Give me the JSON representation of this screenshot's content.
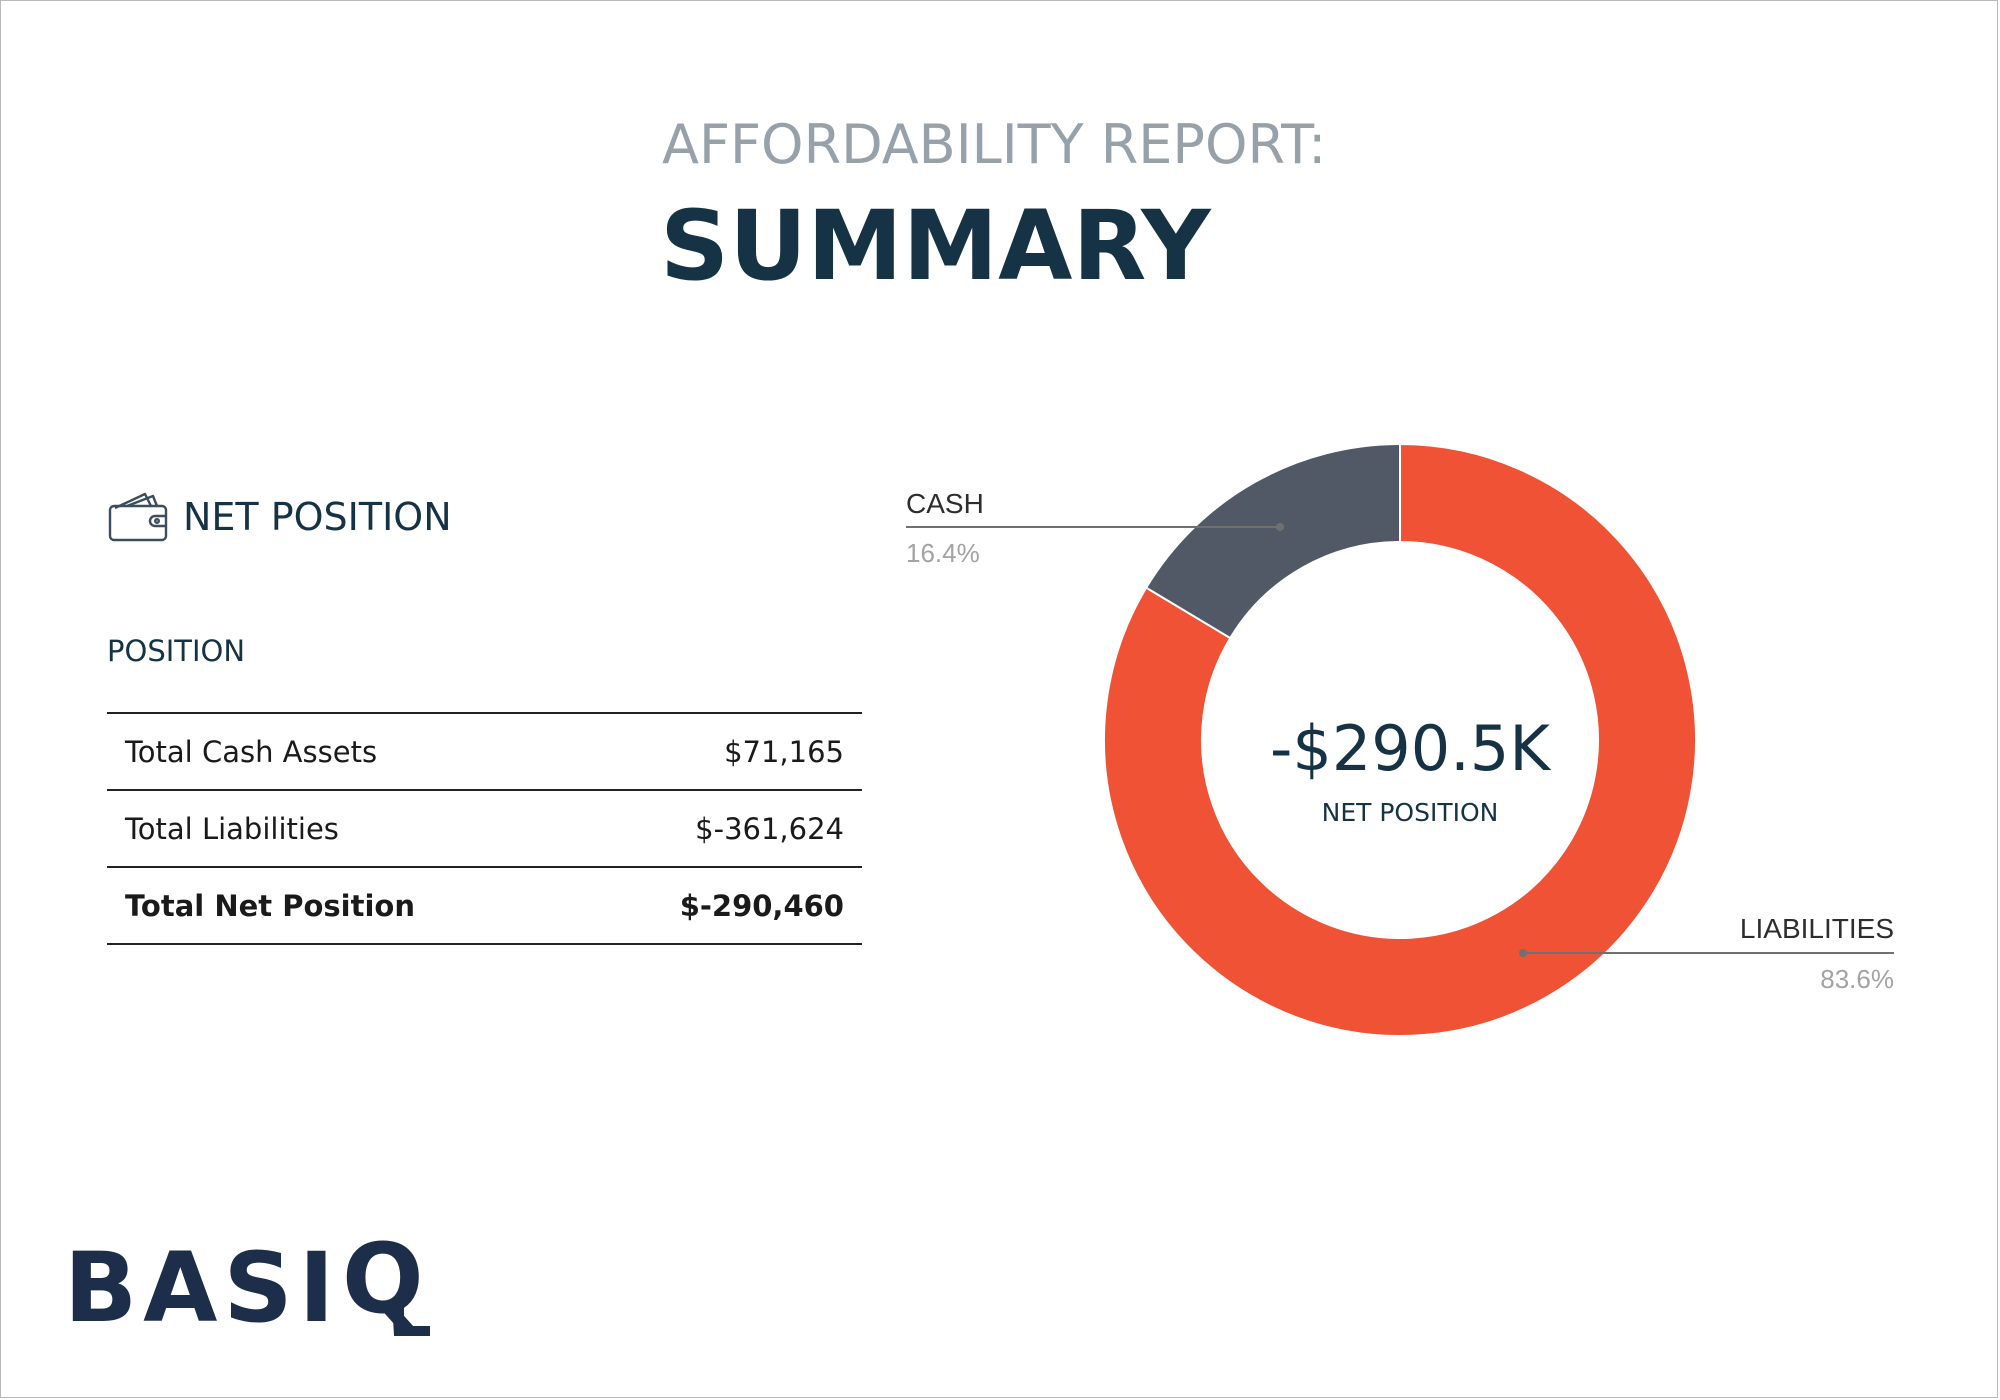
{
  "header": {
    "subtitle": "AFFORDABILITY REPORT:",
    "title": "SUMMARY"
  },
  "section": {
    "icon": "wallet-icon",
    "title": "NET POSITION",
    "subheading": "POSITION"
  },
  "table": {
    "rows": [
      {
        "label": "Total Cash Assets",
        "value": "$71,165"
      },
      {
        "label": "Total Liabilities",
        "value": "$-361,624"
      },
      {
        "label": "Total Net Position",
        "value": "$-290,460"
      }
    ]
  },
  "chart_data": {
    "type": "pie",
    "style": "donut",
    "slices": [
      {
        "label": "CASH",
        "percent_label": "16.4%",
        "value": 16.4,
        "color": "#515966"
      },
      {
        "label": "LIABILITIES",
        "percent_label": "83.6%",
        "value": 83.6,
        "color": "#ef5234"
      }
    ],
    "center_value": "-$290.5K",
    "center_label": "NET POSITION"
  },
  "logo": {
    "text": "BASI",
    "mark": "Q"
  },
  "colors": {
    "navy": "#163346",
    "grey_title": "#96a1aa",
    "cash": "#515966",
    "liabilities": "#ef5234"
  }
}
